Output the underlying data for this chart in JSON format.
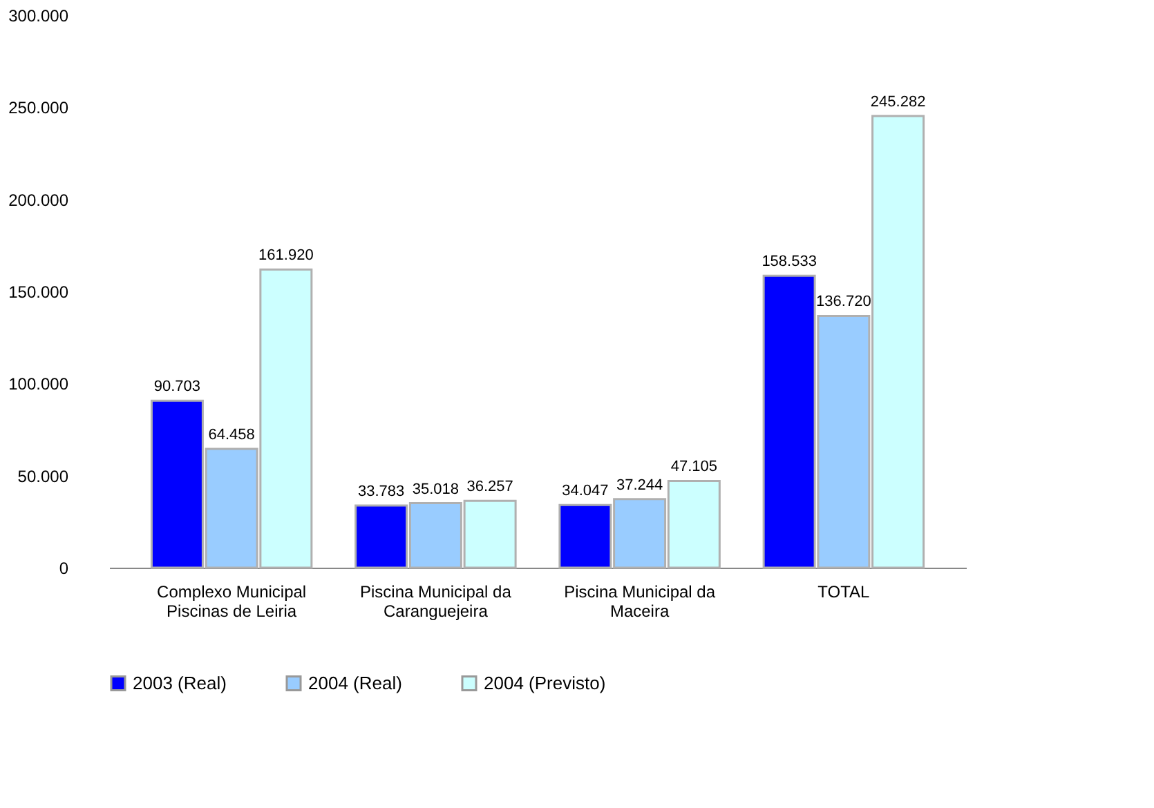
{
  "chart_data": {
    "type": "bar",
    "categories": [
      "Complexo Municipal\nPiscinas de Leiria",
      "Piscina Municipal da\nCaranguejeira",
      "Piscina Municipal da\nMaceira",
      "TOTAL"
    ],
    "series": [
      {
        "name": "2003 (Real)",
        "color": "#0000ff",
        "values": [
          90703,
          33783,
          34047,
          158533
        ],
        "value_labels": [
          "90.703",
          "33.783",
          "34.047",
          "158.533"
        ]
      },
      {
        "name": "2004 (Real)",
        "color": "#99ccff",
        "values": [
          64458,
          35018,
          37244,
          136720
        ],
        "value_labels": [
          "64.458",
          "35.018",
          "37.244",
          "136.720"
        ]
      },
      {
        "name": "2004 (Previsto)",
        "color": "#ccffff",
        "values": [
          161920,
          36257,
          47105,
          245282
        ],
        "value_labels": [
          "161.920",
          "36.257",
          "47.105",
          "245.282"
        ]
      }
    ],
    "ylim": [
      0,
      300000
    ],
    "yticks": [
      {
        "value": 0,
        "label": "0"
      },
      {
        "value": 50000,
        "label": "50.000"
      },
      {
        "value": 100000,
        "label": "100.000"
      },
      {
        "value": 150000,
        "label": "150.000"
      },
      {
        "value": 200000,
        "label": "200.000"
      },
      {
        "value": 250000,
        "label": "250.000"
      },
      {
        "value": 300000,
        "label": "300.000"
      }
    ],
    "grid": false,
    "legend": "bottom"
  }
}
